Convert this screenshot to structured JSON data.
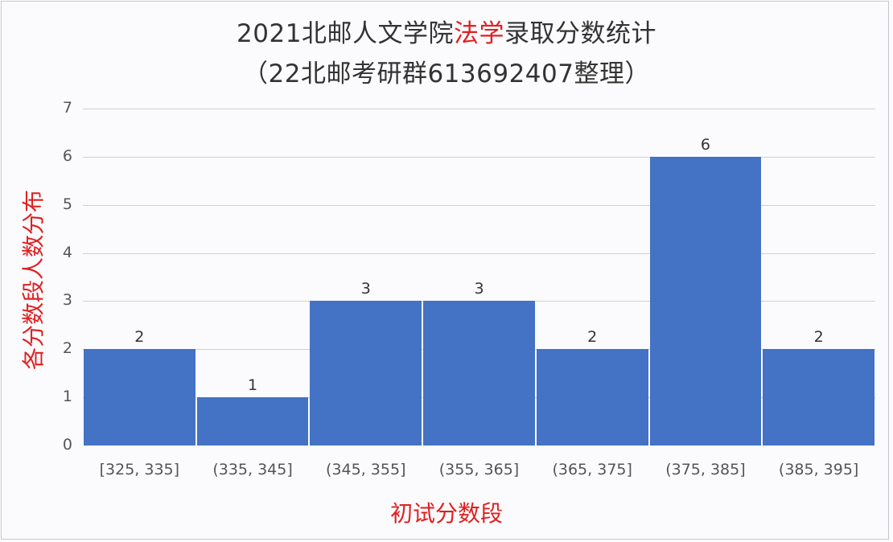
{
  "chart_data": {
    "type": "bar",
    "title_line1_parts": [
      "2021北邮人文学院",
      "法学",
      "录取分数统计"
    ],
    "title_line2": "（22北邮考研群613692407整理）",
    "title": "2021北邮人文学院法学录取分数统计（22北邮考研群613692407整理）",
    "xlabel": "初试分数段",
    "ylabel": "各分数段人数分布",
    "categories": [
      "[325, 335]",
      "(335, 345]",
      "(345, 355]",
      "(355, 365]",
      "(365, 375]",
      "(375, 385]",
      "(385, 395]"
    ],
    "values": [
      2,
      1,
      3,
      3,
      2,
      6,
      2
    ],
    "yticks": [
      "0",
      "1",
      "2",
      "3",
      "4",
      "5",
      "6",
      "7"
    ],
    "ylim": [
      0,
      7
    ],
    "grid": true,
    "legend": null,
    "bar_color": "#4472c4",
    "accent_color": "#e02020"
  }
}
